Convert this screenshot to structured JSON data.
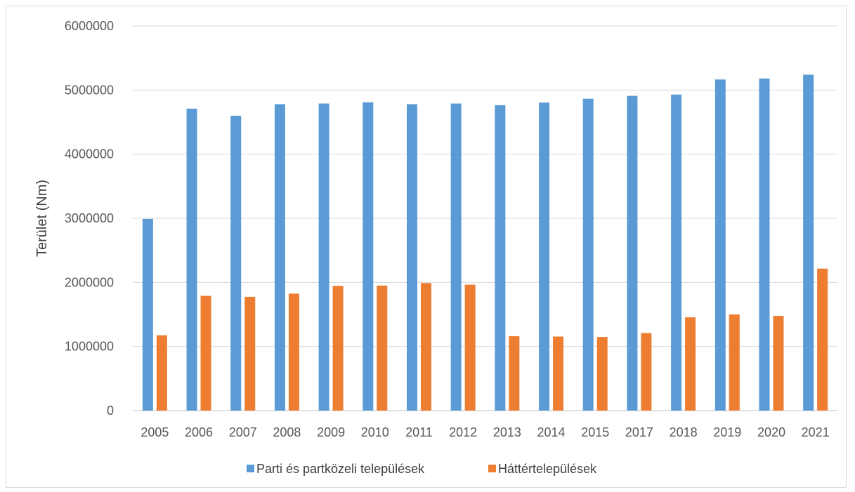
{
  "chart_data": {
    "type": "bar",
    "title": "",
    "xlabel": "",
    "ylabel": "Terület (Nm)",
    "ylim": [
      0,
      6000000
    ],
    "yticks": [
      "0",
      "1000000",
      "2000000",
      "3000000",
      "4000000",
      "5000000",
      "6000000"
    ],
    "grid": true,
    "legend_position": "bottom",
    "categories": [
      "2005",
      "2006",
      "2007",
      "2008",
      "2009",
      "2010",
      "2011",
      "2012",
      "2013",
      "2014",
      "2015",
      "2017",
      "2018",
      "2019",
      "2020",
      "2021"
    ],
    "series": [
      {
        "name": "Parti és partközeli települések",
        "color": "#5b9bd5",
        "values": [
          2990000,
          4710000,
          4600000,
          4780000,
          4790000,
          4810000,
          4780000,
          4790000,
          4765000,
          4805000,
          4865000,
          4910000,
          4930000,
          5165000,
          5180000,
          5240000
        ]
      },
      {
        "name": "Háttértelepülések",
        "color": "#ed7d31",
        "values": [
          1175000,
          1790000,
          1775000,
          1825000,
          1945000,
          1950000,
          1990000,
          1965000,
          1160000,
          1155000,
          1148000,
          1210000,
          1455000,
          1500000,
          1478000,
          2215000
        ]
      }
    ]
  }
}
